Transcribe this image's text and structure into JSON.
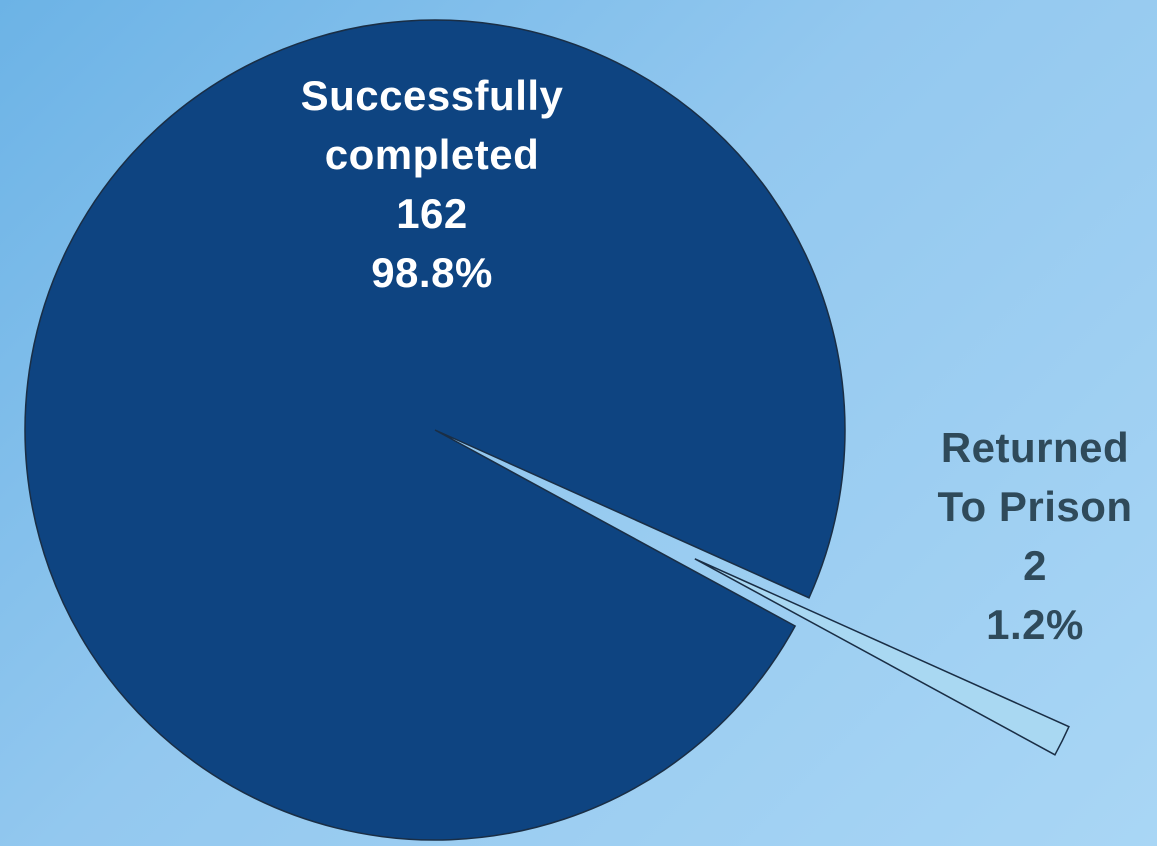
{
  "chart_data": {
    "type": "pie",
    "title": "",
    "slices": [
      {
        "label_lines": [
          "Successfully",
          "completed"
        ],
        "value": 162,
        "percent_label": "98.8%",
        "percent": 98.8,
        "color": "#0e4481",
        "exploded": false
      },
      {
        "label_lines": [
          "Returned",
          "To Prison"
        ],
        "value": 2,
        "percent_label": "1.2%",
        "percent": 1.2,
        "color": "#a9d8f2",
        "exploded": true
      }
    ],
    "legend": "none",
    "label_colors": [
      "#ffffff",
      "#2f4a5a"
    ],
    "outline_color": "#1a2e45"
  }
}
